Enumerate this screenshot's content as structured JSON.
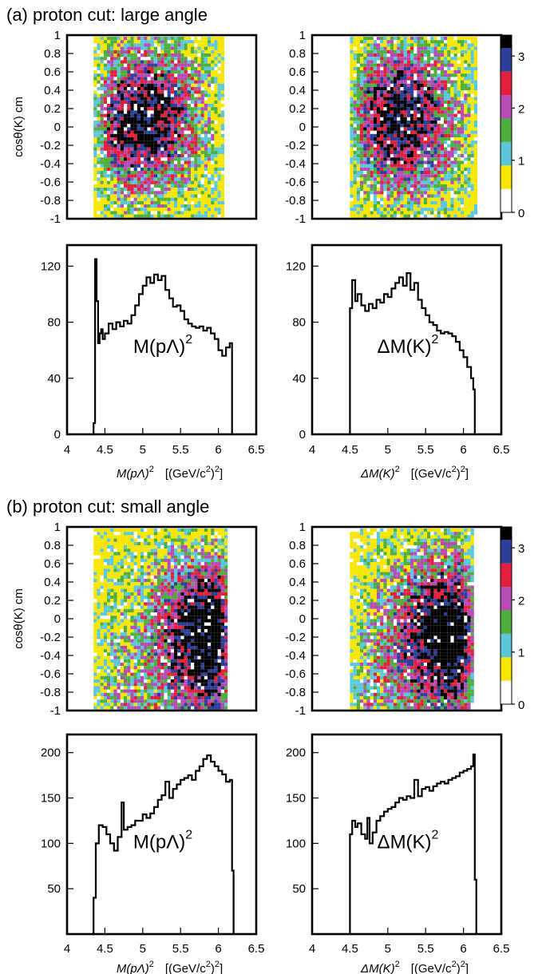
{
  "colors": {
    "palette": [
      "#ffffff",
      "#f7e600",
      "#5cc7db",
      "#4fae3d",
      "#b54bb5",
      "#e3203c",
      "#2d3e98",
      "#000000"
    ],
    "frame": "#000000"
  },
  "colorbar": {
    "labels": [
      "0",
      "1",
      "2",
      "3"
    ],
    "levels": [
      0,
      0.45,
      0.9,
      1.35,
      1.8,
      2.25,
      2.7,
      3.15,
      3.4
    ]
  },
  "sections": [
    {
      "title": "(a) proton cut: large angle",
      "density_ylabel": "cosθ(K)  cm",
      "maps": [
        {
          "name": "M(pΛ)² vs cosθ(K) cm",
          "xlim": [
            4.3,
            6.2
          ],
          "blob_center": [
            5.0,
            0.1
          ],
          "xrange": [
            4.35,
            6.05
          ]
        },
        {
          "name": "ΔM(K)² vs cosθ(K) cm",
          "xlim": [
            4.5,
            6.2
          ],
          "blob_center": [
            5.15,
            0.1
          ],
          "xrange": [
            4.5,
            6.15
          ]
        }
      ],
      "histograms": [
        {
          "label": "M(pΛ)",
          "label_sup": "2",
          "xlabel_main": "M(pΛ)",
          "xlabel_sup": "2",
          "xlabel_unit": "[(GeV/c",
          "xlabel_unit_sup": "2",
          "xlabel_unit_tail": ")",
          "xlabel_unit_sup2": "2",
          "xlabel_unit_end": "]",
          "xlim": [
            4,
            6.5
          ],
          "ylim": [
            0,
            135
          ],
          "yticks": [
            0,
            40,
            80,
            120
          ],
          "xticks": [
            "4",
            "4.5",
            "5",
            "5.5",
            "6",
            "6.5"
          ],
          "steps": [
            [
              4.32,
              0
            ],
            [
              4.35,
              8
            ],
            [
              4.37,
              125
            ],
            [
              4.39,
              95
            ],
            [
              4.41,
              65
            ],
            [
              4.43,
              72
            ],
            [
              4.45,
              75
            ],
            [
              4.47,
              68
            ],
            [
              4.5,
              72
            ],
            [
              4.55,
              79
            ],
            [
              4.6,
              75
            ],
            [
              4.65,
              80
            ],
            [
              4.7,
              77
            ],
            [
              4.75,
              81
            ],
            [
              4.8,
              79
            ],
            [
              4.85,
              85
            ],
            [
              4.9,
              92
            ],
            [
              4.95,
              100
            ],
            [
              5.0,
              106
            ],
            [
              5.05,
              112
            ],
            [
              5.1,
              108
            ],
            [
              5.15,
              114
            ],
            [
              5.2,
              110
            ],
            [
              5.25,
              113
            ],
            [
              5.3,
              103
            ],
            [
              5.35,
              97
            ],
            [
              5.4,
              91
            ],
            [
              5.45,
              92
            ],
            [
              5.5,
              88
            ],
            [
              5.55,
              82
            ],
            [
              5.6,
              79
            ],
            [
              5.65,
              77
            ],
            [
              5.7,
              76
            ],
            [
              5.75,
              77
            ],
            [
              5.8,
              74
            ],
            [
              5.85,
              76
            ],
            [
              5.9,
              72
            ],
            [
              5.95,
              68
            ],
            [
              6.0,
              60
            ],
            [
              6.05,
              56
            ],
            [
              6.1,
              62
            ],
            [
              6.15,
              65
            ],
            [
              6.18,
              0
            ]
          ]
        },
        {
          "label": "ΔM(K)",
          "label_sup": "2",
          "xlabel_main": "ΔM(K)",
          "xlabel_sup": "2",
          "xlabel_unit": "[(GeV/c",
          "xlabel_unit_sup": "2",
          "xlabel_unit_tail": ")",
          "xlabel_unit_sup2": "2",
          "xlabel_unit_end": "]",
          "xlim": [
            4,
            6.5
          ],
          "ylim": [
            0,
            135
          ],
          "yticks": [
            0,
            40,
            80,
            120
          ],
          "xticks": [
            "4",
            "4.5",
            "5",
            "5.5",
            "6",
            "6.5"
          ],
          "steps": [
            [
              4.49,
              0
            ],
            [
              4.5,
              90
            ],
            [
              4.53,
              110
            ],
            [
              4.57,
              95
            ],
            [
              4.6,
              100
            ],
            [
              4.65,
              92
            ],
            [
              4.7,
              88
            ],
            [
              4.75,
              93
            ],
            [
              4.8,
              90
            ],
            [
              4.85,
              96
            ],
            [
              4.9,
              94
            ],
            [
              4.95,
              100
            ],
            [
              5.0,
              98
            ],
            [
              5.05,
              104
            ],
            [
              5.1,
              108
            ],
            [
              5.15,
              112
            ],
            [
              5.2,
              106
            ],
            [
              5.25,
              115
            ],
            [
              5.3,
              103
            ],
            [
              5.35,
              108
            ],
            [
              5.4,
              96
            ],
            [
              5.45,
              90
            ],
            [
              5.5,
              85
            ],
            [
              5.55,
              80
            ],
            [
              5.6,
              78
            ],
            [
              5.65,
              74
            ],
            [
              5.7,
              72
            ],
            [
              5.75,
              73
            ],
            [
              5.8,
              72
            ],
            [
              5.85,
              70
            ],
            [
              5.9,
              66
            ],
            [
              5.95,
              60
            ],
            [
              6.0,
              55
            ],
            [
              6.05,
              48
            ],
            [
              6.1,
              40
            ],
            [
              6.13,
              32
            ],
            [
              6.15,
              0
            ]
          ]
        }
      ]
    },
    {
      "title": "(b) proton cut: small angle",
      "density_ylabel": "cosθ(K)  cm",
      "maps": [
        {
          "name": "M(pΛ)² vs cosθ(K) cm",
          "xlim": [
            4.3,
            6.2
          ],
          "blob_center": [
            5.9,
            -0.1
          ],
          "xrange": [
            4.35,
            6.1
          ]
        },
        {
          "name": "ΔM(K)² vs cosθ(K) cm",
          "xlim": [
            4.5,
            6.2
          ],
          "blob_center": [
            5.8,
            -0.1
          ],
          "xrange": [
            4.5,
            6.1
          ]
        }
      ],
      "histograms": [
        {
          "label": "M(pΛ)",
          "label_sup": "2",
          "xlabel_main": "M(pΛ)",
          "xlabel_sup": "2",
          "xlabel_unit": "[(GeV/c",
          "xlabel_unit_sup": "2",
          "xlabel_unit_tail": ")",
          "xlabel_unit_sup2": "2",
          "xlabel_unit_end": "]",
          "xlim": [
            4,
            6.5
          ],
          "ylim": [
            0,
            220
          ],
          "yticks": [
            50,
            100,
            150,
            200
          ],
          "xticks": [
            "4",
            "4.5",
            "5",
            "5.5",
            "6",
            "6.5"
          ],
          "steps": [
            [
              4.32,
              0
            ],
            [
              4.35,
              40
            ],
            [
              4.38,
              100
            ],
            [
              4.42,
              120
            ],
            [
              4.47,
              118
            ],
            [
              4.52,
              110
            ],
            [
              4.57,
              100
            ],
            [
              4.62,
              92
            ],
            [
              4.67,
              107
            ],
            [
              4.72,
              145
            ],
            [
              4.75,
              115
            ],
            [
              4.8,
              118
            ],
            [
              4.85,
              120
            ],
            [
              4.9,
              125
            ],
            [
              4.95,
              125
            ],
            [
              5.0,
              132
            ],
            [
              5.05,
              128
            ],
            [
              5.1,
              133
            ],
            [
              5.15,
              140
            ],
            [
              5.2,
              148
            ],
            [
              5.25,
              153
            ],
            [
              5.3,
              168
            ],
            [
              5.35,
              150
            ],
            [
              5.4,
              160
            ],
            [
              5.45,
              165
            ],
            [
              5.5,
              170
            ],
            [
              5.55,
              172
            ],
            [
              5.6,
              175
            ],
            [
              5.65,
              170
            ],
            [
              5.7,
              180
            ],
            [
              5.75,
              185
            ],
            [
              5.8,
              193
            ],
            [
              5.85,
              197
            ],
            [
              5.9,
              190
            ],
            [
              5.95,
              185
            ],
            [
              6.0,
              180
            ],
            [
              6.05,
              176
            ],
            [
              6.1,
              168
            ],
            [
              6.15,
              170
            ],
            [
              6.18,
              70
            ],
            [
              6.2,
              0
            ]
          ]
        },
        {
          "label": "ΔM(K)",
          "label_sup": "2",
          "xlabel_main": "ΔM(K)",
          "xlabel_sup": "2",
          "xlabel_unit": "[(GeV/c",
          "xlabel_unit_sup": "2",
          "xlabel_unit_tail": ")",
          "xlabel_unit_sup2": "2",
          "xlabel_unit_end": "]",
          "xlim": [
            4,
            6.5
          ],
          "ylim": [
            0,
            220
          ],
          "yticks": [
            50,
            100,
            150,
            200
          ],
          "xticks": [
            "4",
            "4.5",
            "5",
            "5.5",
            "6",
            "6.5"
          ],
          "steps": [
            [
              4.49,
              0
            ],
            [
              4.5,
              110
            ],
            [
              4.53,
              125
            ],
            [
              4.57,
              118
            ],
            [
              4.6,
              122
            ],
            [
              4.65,
              110
            ],
            [
              4.7,
              105
            ],
            [
              4.73,
              128
            ],
            [
              4.76,
              100
            ],
            [
              4.8,
              112
            ],
            [
              4.85,
              125
            ],
            [
              4.9,
              130
            ],
            [
              4.95,
              135
            ],
            [
              5.0,
              138
            ],
            [
              5.05,
              140
            ],
            [
              5.1,
              145
            ],
            [
              5.15,
              150
            ],
            [
              5.2,
              148
            ],
            [
              5.25,
              152
            ],
            [
              5.3,
              150
            ],
            [
              5.35,
              170
            ],
            [
              5.4,
              152
            ],
            [
              5.45,
              160
            ],
            [
              5.5,
              162
            ],
            [
              5.55,
              158
            ],
            [
              5.6,
              163
            ],
            [
              5.65,
              166
            ],
            [
              5.7,
              168
            ],
            [
              5.75,
              166
            ],
            [
              5.8,
              170
            ],
            [
              5.85,
              172
            ],
            [
              5.9,
              174
            ],
            [
              5.95,
              178
            ],
            [
              6.0,
              180
            ],
            [
              6.05,
              182
            ],
            [
              6.1,
              185
            ],
            [
              6.13,
              198
            ],
            [
              6.15,
              60
            ],
            [
              6.17,
              0
            ]
          ]
        }
      ]
    }
  ],
  "map_axes": {
    "xlim": [
      4,
      6.5
    ],
    "ylim": [
      -1,
      1
    ],
    "yticks": [
      "1",
      "0.8",
      "0.6",
      "0.4",
      "0.2",
      "0",
      "-0.2",
      "-0.4",
      "-0.6",
      "-0.8",
      "-1"
    ]
  },
  "chart_data": [
    {
      "type": "heatmap",
      "title": "(a) proton cut: large angle",
      "ylabel": "cosθ(K)  cm",
      "xlabel": "M(pΛ)²  [(GeV/c²)²]",
      "xlim": [
        4,
        6.5
      ],
      "ylim": [
        -1,
        1
      ],
      "z_range": [
        0,
        3.4
      ],
      "note_values": "event density as colour scale 0–3"
    },
    {
      "type": "heatmap",
      "ylabel": "cosθ(K)  cm",
      "xlabel": "ΔM(K)²  [(GeV/c²)²]",
      "xlim": [
        4,
        6.5
      ],
      "ylim": [
        -1,
        1
      ],
      "z_range": [
        0,
        3.4
      ]
    },
    {
      "type": "line",
      "xlabel": "M(pΛ)²  [(GeV/c²)²]",
      "xlim": [
        4,
        6.5
      ],
      "ylim": [
        0,
        135
      ],
      "x": [
        4.35,
        4.4,
        4.5,
        4.7,
        4.9,
        5.1,
        5.2,
        5.4,
        5.6,
        5.8,
        6.0,
        6.15
      ],
      "values": [
        8,
        70,
        72,
        77,
        92,
        108,
        110,
        91,
        79,
        74,
        60,
        65
      ]
    },
    {
      "type": "line",
      "xlabel": "ΔM(K)²  [(GeV/c²)²]",
      "xlim": [
        4,
        6.5
      ],
      "ylim": [
        0,
        135
      ],
      "x": [
        4.5,
        4.6,
        4.8,
        5.0,
        5.2,
        5.3,
        5.5,
        5.7,
        5.9,
        6.1,
        6.13
      ],
      "values": [
        90,
        100,
        90,
        98,
        106,
        103,
        85,
        72,
        66,
        40,
        32
      ]
    },
    {
      "type": "heatmap",
      "title": "(b) proton cut: small angle",
      "ylabel": "cosθ(K)  cm",
      "xlabel": "M(pΛ)²  [(GeV/c²)²]",
      "xlim": [
        4,
        6.5
      ],
      "ylim": [
        -1,
        1
      ],
      "z_range": [
        0,
        3.4
      ]
    },
    {
      "type": "heatmap",
      "ylabel": "cosθ(K)  cm",
      "xlabel": "ΔM(K)²  [(GeV/c²)²]",
      "xlim": [
        4,
        6.5
      ],
      "ylim": [
        -1,
        1
      ],
      "z_range": [
        0,
        3.4
      ]
    },
    {
      "type": "line",
      "xlabel": "M(pΛ)²  [(GeV/c²)²]",
      "xlim": [
        4,
        6.5
      ],
      "ylim": [
        0,
        220
      ],
      "x": [
        4.35,
        4.42,
        4.6,
        4.8,
        5.0,
        5.2,
        5.4,
        5.6,
        5.85,
        6.0,
        6.15,
        6.18
      ],
      "values": [
        40,
        120,
        92,
        118,
        132,
        148,
        160,
        175,
        197,
        180,
        170,
        70
      ]
    },
    {
      "type": "line",
      "xlabel": "ΔM(K)²  [(GeV/c²)²]",
      "xlim": [
        4,
        6.5
      ],
      "ylim": [
        0,
        220
      ],
      "x": [
        4.5,
        4.53,
        4.7,
        4.9,
        5.1,
        5.3,
        5.5,
        5.7,
        5.9,
        6.1,
        6.13,
        6.15
      ],
      "values": [
        110,
        125,
        105,
        130,
        145,
        150,
        162,
        168,
        174,
        185,
        198,
        60
      ]
    }
  ]
}
